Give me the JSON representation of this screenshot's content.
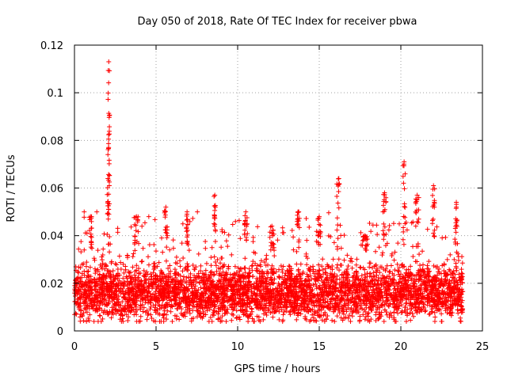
{
  "chart_data": {
    "type": "scatter",
    "title": "Day 050 of 2018, Rate Of TEC Index for receiver pbwa",
    "xlabel": "GPS time / hours",
    "ylabel": "ROTI / TECUs",
    "xlim": [
      0,
      25
    ],
    "ylim": [
      0,
      0.12
    ],
    "xticks": [
      0,
      5,
      10,
      15,
      20,
      25
    ],
    "yticks": [
      0,
      0.02,
      0.04,
      0.06,
      0.08,
      0.1,
      0.12
    ],
    "xtick_labels": [
      "0",
      "5",
      "10",
      "15",
      "20",
      "25"
    ],
    "ytick_labels": [
      "0",
      "0.02",
      "0.04",
      "0.06",
      "0.08",
      "0.1",
      "0.12"
    ],
    "grid": true,
    "marker": "+",
    "color": "#ff0000",
    "data_range_hours": [
      0,
      23.8
    ],
    "baseline": {
      "typical": 0.016,
      "low": 0.004,
      "high": 0.032
    },
    "peaks": [
      {
        "x": 2.1,
        "y": 0.113,
        "width": 0.12
      },
      {
        "x": 2.05,
        "y": 0.064,
        "width": 0.2
      },
      {
        "x": 16.2,
        "y": 0.064,
        "width": 0.25
      },
      {
        "x": 20.2,
        "y": 0.071,
        "width": 0.15
      },
      {
        "x": 22.0,
        "y": 0.061,
        "width": 0.15
      },
      {
        "x": 8.6,
        "y": 0.057,
        "width": 0.1
      },
      {
        "x": 19.0,
        "y": 0.058,
        "width": 0.2
      },
      {
        "x": 21.0,
        "y": 0.057,
        "width": 0.2
      },
      {
        "x": 5.6,
        "y": 0.052,
        "width": 0.2
      },
      {
        "x": 6.9,
        "y": 0.05,
        "width": 0.1
      },
      {
        "x": 10.5,
        "y": 0.05,
        "width": 0.2
      },
      {
        "x": 13.7,
        "y": 0.05,
        "width": 0.2
      },
      {
        "x": 15.0,
        "y": 0.048,
        "width": 0.2
      },
      {
        "x": 3.8,
        "y": 0.048,
        "width": 0.3
      },
      {
        "x": 1.0,
        "y": 0.048,
        "width": 0.2
      },
      {
        "x": 23.4,
        "y": 0.054,
        "width": 0.2
      },
      {
        "x": 17.8,
        "y": 0.04,
        "width": 0.3
      },
      {
        "x": 12.1,
        "y": 0.044,
        "width": 0.3
      }
    ]
  }
}
